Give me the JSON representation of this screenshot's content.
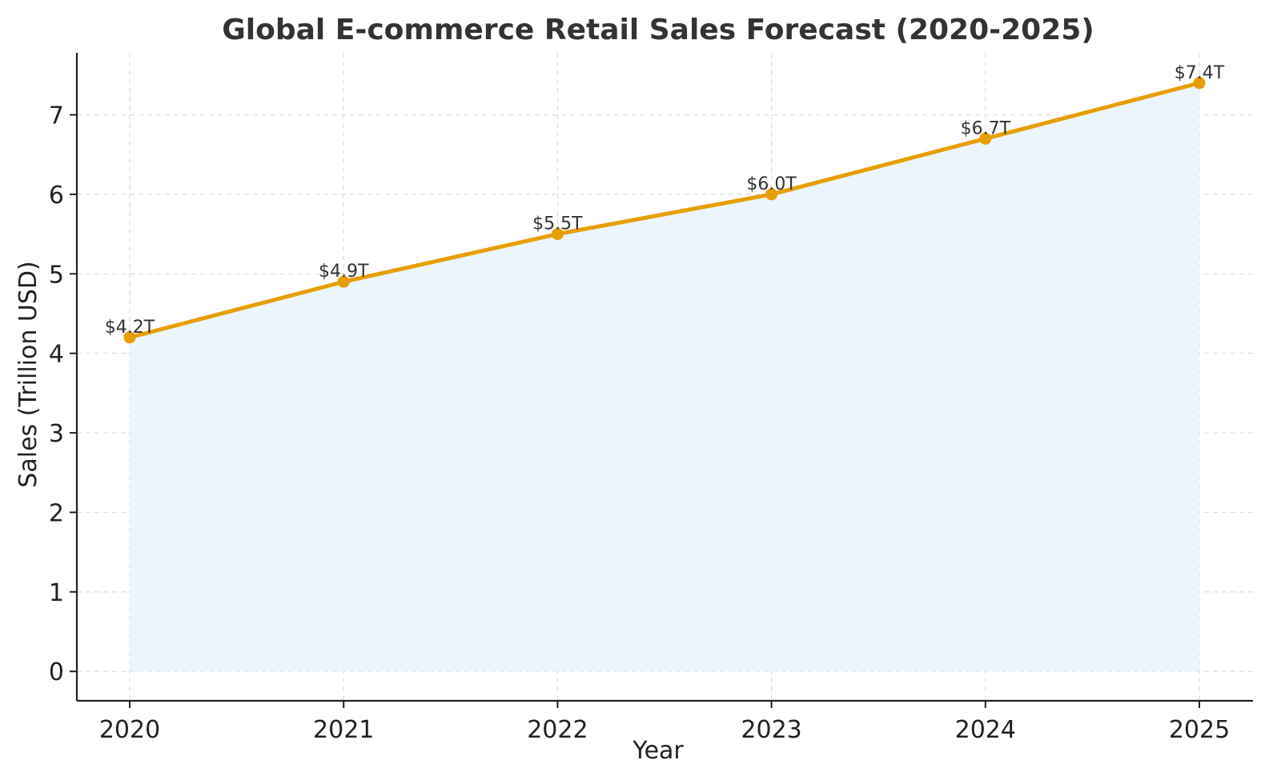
{
  "chart_data": {
    "type": "line",
    "title": "Global E-commerce Retail Sales Forecast (2020-2025)",
    "xlabel": "Year",
    "ylabel": "Sales (Trillion USD)",
    "x": [
      "2020",
      "2021",
      "2022",
      "2023",
      "2024",
      "2025"
    ],
    "values": [
      4.2,
      4.9,
      5.5,
      6.0,
      6.7,
      7.4
    ],
    "data_labels": [
      "$4.2T",
      "$4.9T",
      "$5.5T",
      "$6.0T",
      "$6.7T",
      "$7.4T"
    ],
    "yticks": [
      0,
      1,
      2,
      3,
      4,
      5,
      6,
      7
    ],
    "ylim": [
      -0.37,
      7.78
    ],
    "grid": true,
    "fill_under_line": true,
    "colors": {
      "line": "#e69f00",
      "fill": "#eaf3fd",
      "grid": "#dddddd",
      "text": "#222222"
    }
  }
}
